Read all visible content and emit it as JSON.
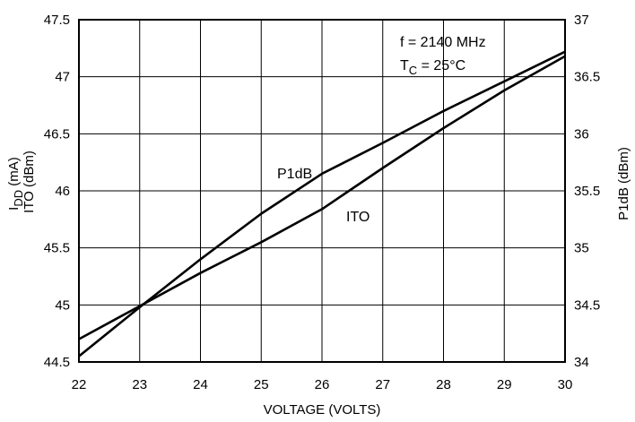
{
  "chart_data": {
    "type": "line",
    "xlabel": "VOLTAGE (VOLTS)",
    "ylabel_left": [
      "I",
      "DD",
      " (mA)",
      "ITO (dBm)"
    ],
    "ylabel_right": "P1dB (dBm)",
    "x_ticks": [
      "22",
      "23",
      "24",
      "25",
      "26",
      "27",
      "28",
      "29",
      "30"
    ],
    "y_left_ticks": [
      "44.5",
      "45",
      "45.5",
      "46",
      "46.5",
      "47",
      "47.5"
    ],
    "y_right_ticks": [
      "34",
      "34.5",
      "35",
      "35.5",
      "36",
      "36.5",
      "37"
    ],
    "xlim": [
      22,
      30
    ],
    "ylim_left": [
      44.5,
      47.5
    ],
    "ylim_right": [
      34,
      37
    ],
    "grid": true,
    "annotation": {
      "f": "f = 2140 MHz",
      "tc_prefix": "T",
      "tc_sub": "C",
      "tc_suffix": " = 25°C"
    },
    "series": [
      {
        "name": "P1dB",
        "axis": "right",
        "x": [
          22,
          23,
          24,
          25,
          26,
          27,
          28,
          29,
          30
        ],
        "y": [
          34.05,
          34.48,
          34.9,
          35.3,
          35.65,
          35.92,
          36.2,
          36.46,
          36.72
        ]
      },
      {
        "name": "ITO",
        "axis": "left",
        "x": [
          22,
          23,
          24,
          25,
          26,
          27,
          28,
          29,
          30
        ],
        "y": [
          44.7,
          44.99,
          45.28,
          45.55,
          45.84,
          46.2,
          46.55,
          46.88,
          47.18
        ]
      }
    ],
    "series_labels": [
      "P1dB",
      "ITO"
    ]
  }
}
